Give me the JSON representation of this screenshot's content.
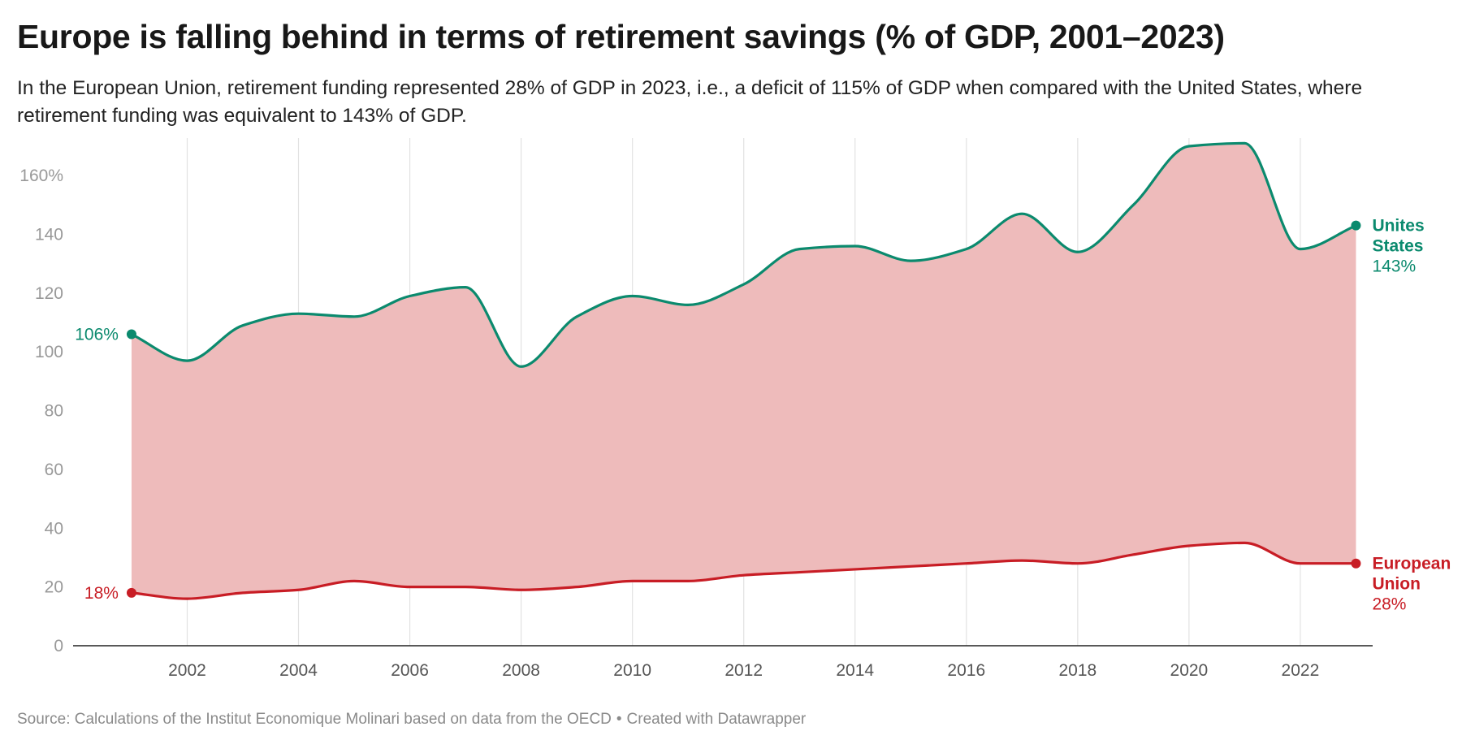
{
  "title": "Europe is falling behind in terms of retirement savings (% of GDP, 2001–2023)",
  "subtitle": "In the European Union, retirement funding represented 28% of GDP in 2023, i.e., a deficit of 115% of GDP when compared with the United States, where retirement funding was equivalent to 143% of GDP.",
  "footer": {
    "source": "Source: Calculations of the Institut Economique Molinari based on data from the OECD",
    "separator": "•",
    "credit": "Created with Datawrapper"
  },
  "chart_data": {
    "type": "line",
    "x": [
      2001,
      2002,
      2003,
      2004,
      2005,
      2006,
      2007,
      2008,
      2009,
      2010,
      2011,
      2012,
      2013,
      2014,
      2015,
      2016,
      2017,
      2018,
      2019,
      2020,
      2021,
      2022,
      2023
    ],
    "xlim": [
      1999.95,
      2023.3
    ],
    "xticks": [
      2002,
      2004,
      2006,
      2008,
      2010,
      2012,
      2014,
      2016,
      2018,
      2020,
      2022
    ],
    "ylim": [
      0,
      170
    ],
    "yticks": [
      0,
      20,
      40,
      60,
      80,
      100,
      120,
      140,
      160
    ],
    "ytick_labels": [
      "0",
      "20",
      "40",
      "60",
      "80",
      "100",
      "120",
      "140",
      "160%"
    ],
    "grid": "vertical",
    "gap_fill": "between series",
    "series": [
      {
        "name": "Unites States",
        "label_lines": [
          "Unites",
          "States"
        ],
        "color": "#0b8a6e",
        "values": [
          106,
          97,
          109,
          113,
          112,
          119,
          122,
          95,
          112,
          119,
          116,
          123,
          135,
          136,
          131,
          135,
          147,
          134,
          150,
          170,
          171,
          135,
          143
        ],
        "start_label": "106%",
        "end_label": "143%"
      },
      {
        "name": "European Union",
        "label_lines": [
          "European",
          "Union"
        ],
        "color": "#c81d25",
        "values": [
          18,
          16,
          18,
          19,
          22,
          20,
          20,
          19,
          20,
          22,
          22,
          24,
          25,
          26,
          27,
          28,
          29,
          28,
          31,
          34,
          35,
          28,
          28
        ],
        "start_label": "18%",
        "end_label": "28%"
      }
    ],
    "fill_color": "#eebbbb"
  }
}
